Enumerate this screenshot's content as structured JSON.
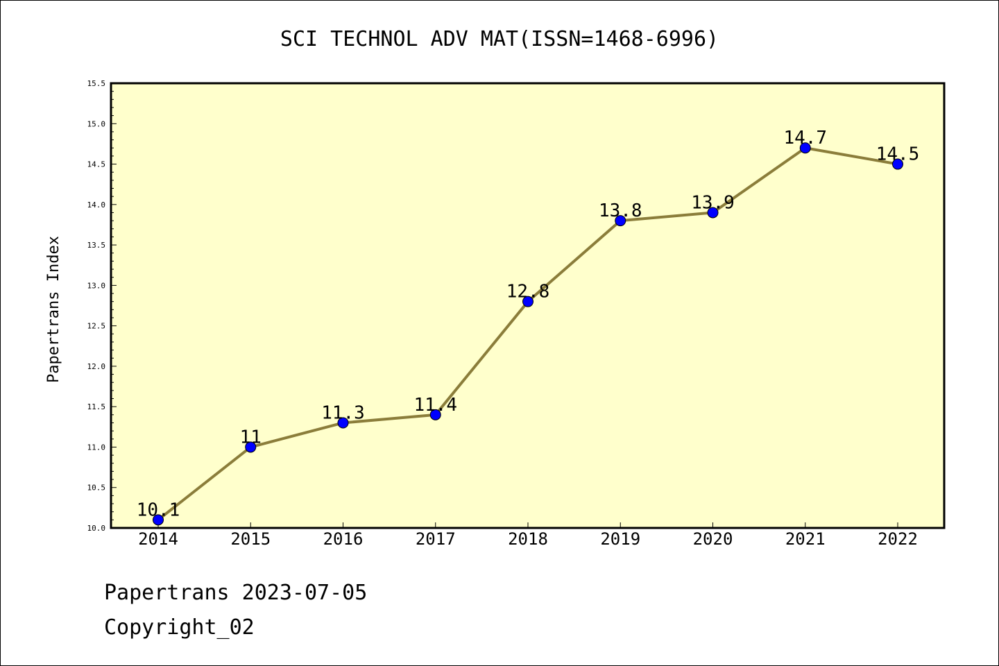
{
  "chart_data": {
    "type": "line",
    "title": "SCI TECHNOL ADV MAT(ISSN=1468-6996)",
    "xlabel": "",
    "ylabel": "Papertrans Index",
    "categories": [
      "2014",
      "2015",
      "2016",
      "2017",
      "2018",
      "2019",
      "2020",
      "2021",
      "2022"
    ],
    "series": [
      {
        "values": [
          10.1,
          11,
          11.3,
          11.4,
          12.8,
          13.8,
          13.9,
          14.7,
          14.5
        ],
        "labels": [
          "10.1",
          "11",
          "11.3",
          "11.4",
          "12.8",
          "13.8",
          "13.9",
          "14.7",
          "14.5"
        ]
      }
    ],
    "ylim": [
      10.0,
      15.5
    ],
    "yticks": [
      "10.0",
      "10.5",
      "11.0",
      "11.5",
      "12.0",
      "12.5",
      "13.0",
      "13.5",
      "14.0",
      "14.5",
      "15.0",
      "15.5"
    ],
    "grid": false,
    "legend": "none",
    "colors": {
      "plot_background": "#ffffcc",
      "line": "#8b7d3a",
      "marker": "#0000ff"
    }
  },
  "footer": {
    "line1": "Papertrans 2023-07-05",
    "line2": "Copyright_02"
  }
}
